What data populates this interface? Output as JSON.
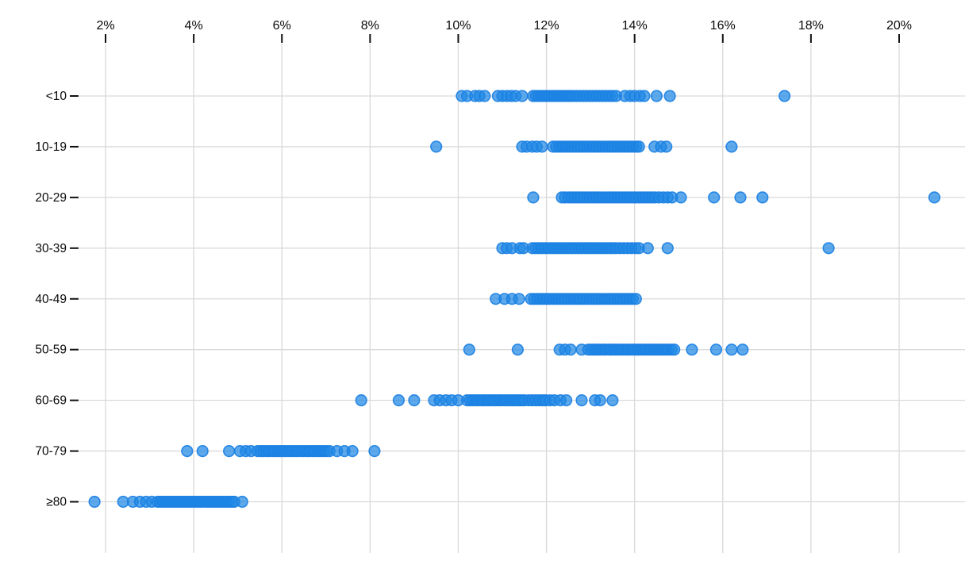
{
  "chart_data": {
    "type": "scatter",
    "variant": "horizontal-strip-plot",
    "title": "",
    "xlabel": "",
    "ylabel": "",
    "x_axis": {
      "position": "top",
      "tick_labels": [
        "2%",
        "4%",
        "6%",
        "8%",
        "10%",
        "12%",
        "14%",
        "16%",
        "18%",
        "20%"
      ],
      "tick_values": [
        2,
        4,
        6,
        8,
        10,
        12,
        14,
        16,
        18,
        20
      ],
      "min": 2,
      "max": 20,
      "grid": true
    },
    "y_axis": {
      "position": "left",
      "grid": true
    },
    "categories": [
      "<10",
      "10-19",
      "20-29",
      "30-39",
      "40-49",
      "50-59",
      "60-69",
      "70-79",
      "≥80"
    ],
    "series": [
      {
        "name": "<10",
        "values": [
          10.08,
          10.2,
          10.38,
          10.48,
          10.6,
          10.9,
          11.0,
          11.1,
          11.2,
          11.3,
          11.45,
          11.7,
          11.76,
          11.82,
          11.88,
          11.94,
          12.0,
          12.06,
          12.12,
          12.18,
          12.24,
          12.3,
          12.36,
          12.42,
          12.48,
          12.54,
          12.6,
          12.68,
          12.75,
          12.83,
          12.9,
          12.98,
          13.05,
          13.13,
          13.2,
          13.28,
          13.35,
          13.43,
          13.5,
          13.58,
          13.78,
          13.9,
          14.0,
          14.12,
          14.22,
          14.5,
          14.8,
          17.4
        ]
      },
      {
        "name": "10-19",
        "values": [
          9.5,
          11.45,
          11.55,
          11.68,
          11.78,
          11.9,
          12.15,
          12.22,
          12.29,
          12.36,
          12.43,
          12.5,
          12.57,
          12.64,
          12.71,
          12.78,
          12.85,
          12.92,
          12.99,
          13.06,
          13.13,
          13.2,
          13.27,
          13.34,
          13.41,
          13.48,
          13.55,
          13.62,
          13.69,
          13.76,
          13.83,
          13.9,
          13.97,
          14.04,
          14.1,
          14.45,
          14.6,
          14.72,
          16.2
        ]
      },
      {
        "name": "20-29",
        "values": [
          11.7,
          12.35,
          12.42,
          12.5,
          12.57,
          12.64,
          12.71,
          12.78,
          12.85,
          12.92,
          12.99,
          13.06,
          13.13,
          13.2,
          13.27,
          13.34,
          13.41,
          13.48,
          13.55,
          13.62,
          13.69,
          13.76,
          13.83,
          13.9,
          13.97,
          14.04,
          14.11,
          14.18,
          14.25,
          14.32,
          14.39,
          14.46,
          14.55,
          14.65,
          14.75,
          14.85,
          15.05,
          15.8,
          16.4,
          16.9,
          20.8
        ]
      },
      {
        "name": "30-39",
        "values": [
          11.0,
          11.1,
          11.22,
          11.4,
          11.48,
          11.68,
          11.75,
          11.82,
          11.89,
          11.96,
          12.03,
          12.1,
          12.17,
          12.24,
          12.31,
          12.38,
          12.45,
          12.52,
          12.59,
          12.66,
          12.73,
          12.8,
          12.87,
          12.94,
          13.01,
          13.08,
          13.15,
          13.22,
          13.29,
          13.36,
          13.43,
          13.5,
          13.57,
          13.66,
          13.75,
          13.84,
          13.93,
          14.02,
          14.1,
          14.3,
          14.75,
          18.4
        ]
      },
      {
        "name": "40-49",
        "values": [
          10.85,
          11.05,
          11.22,
          11.38,
          11.65,
          11.72,
          11.79,
          11.86,
          11.93,
          12.0,
          12.07,
          12.14,
          12.21,
          12.28,
          12.35,
          12.42,
          12.49,
          12.56,
          12.63,
          12.7,
          12.77,
          12.84,
          12.91,
          12.98,
          13.05,
          13.12,
          13.19,
          13.26,
          13.33,
          13.4,
          13.47,
          13.54,
          13.61,
          13.68,
          13.75,
          13.82,
          13.89,
          13.96,
          14.03
        ]
      },
      {
        "name": "50-59",
        "values": [
          10.25,
          11.35,
          12.3,
          12.42,
          12.55,
          12.8,
          12.95,
          13.02,
          13.08,
          13.15,
          13.21,
          13.28,
          13.34,
          13.41,
          13.47,
          13.54,
          13.6,
          13.67,
          13.73,
          13.8,
          13.86,
          13.93,
          13.99,
          14.06,
          14.12,
          14.19,
          14.25,
          14.32,
          14.38,
          14.45,
          14.51,
          14.58,
          14.64,
          14.71,
          14.77,
          14.84,
          14.9,
          15.3,
          15.85,
          16.2,
          16.45
        ]
      },
      {
        "name": "60-69",
        "values": [
          7.8,
          8.65,
          9.0,
          9.45,
          9.58,
          9.72,
          9.85,
          10.0,
          10.2,
          10.27,
          10.33,
          10.4,
          10.46,
          10.53,
          10.59,
          10.66,
          10.72,
          10.79,
          10.85,
          10.92,
          10.98,
          11.05,
          11.11,
          11.18,
          11.24,
          11.31,
          11.37,
          11.44,
          11.5,
          11.6,
          11.68,
          11.76,
          11.84,
          11.92,
          11.98,
          12.08,
          12.18,
          12.32,
          12.45,
          12.8,
          13.1,
          13.22,
          13.5
        ]
      },
      {
        "name": "70-79",
        "values": [
          3.85,
          4.2,
          4.8,
          5.05,
          5.18,
          5.3,
          5.45,
          5.52,
          5.58,
          5.65,
          5.71,
          5.78,
          5.84,
          5.91,
          5.97,
          6.04,
          6.1,
          6.17,
          6.23,
          6.3,
          6.36,
          6.43,
          6.49,
          6.56,
          6.62,
          6.69,
          6.75,
          6.82,
          6.88,
          6.95,
          7.01,
          7.08,
          7.25,
          7.42,
          7.6,
          8.1
        ]
      },
      {
        "name": "≥80",
        "values": [
          1.75,
          2.4,
          2.62,
          2.78,
          2.92,
          3.05,
          3.18,
          3.24,
          3.3,
          3.36,
          3.42,
          3.48,
          3.54,
          3.6,
          3.66,
          3.72,
          3.78,
          3.84,
          3.9,
          3.96,
          4.02,
          4.08,
          4.14,
          4.2,
          4.26,
          4.32,
          4.38,
          4.44,
          4.5,
          4.56,
          4.62,
          4.68,
          4.74,
          4.8,
          4.86,
          4.92,
          5.1
        ]
      }
    ],
    "colors": {
      "point_fill": "#1e88e5",
      "point_stroke": "#1b80e2",
      "grid": "#d9d9d9",
      "axis": "#111111"
    },
    "legend": "none"
  }
}
